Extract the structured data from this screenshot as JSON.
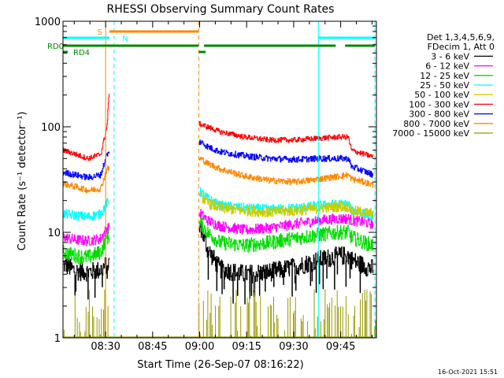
{
  "chart_data": {
    "type": "line",
    "title": "RHESSI Observing Summary Count Rates",
    "xlabel": "Start Time (26-Sep-07 08:16:22)",
    "ylabel": "Count Rate (s⁻¹ detector⁻¹)",
    "y_scale": "log",
    "ylim": [
      1,
      1000
    ],
    "y_ticks": [
      1,
      10,
      100,
      1000
    ],
    "y_tick_labels": [
      "1",
      "10",
      "100",
      "1000"
    ],
    "x_unit": "minutes since 08:16:22",
    "xlim": [
      0,
      100
    ],
    "x_ticks": [
      13.6,
      28.6,
      43.6,
      58.6,
      73.6,
      88.6
    ],
    "x_tick_labels": [
      "08:30",
      "08:45",
      "09:00",
      "09:15",
      "09:30",
      "09:45"
    ],
    "gaps": [
      [
        14.8,
        43.3
      ]
    ],
    "legend_header": [
      "Det 1,3,4,5,6,9,",
      "FDecim 1, Att 0"
    ],
    "timestamp": "16-Oct-2021 15:51",
    "series": [
      {
        "name": "3 - 6 keV",
        "color": "#000000",
        "values": [
          [
            0,
            5
          ],
          [
            4,
            4.3
          ],
          [
            8,
            4.2
          ],
          [
            12,
            4.4
          ],
          [
            14,
            5
          ],
          [
            44,
            11
          ],
          [
            46,
            7
          ],
          [
            50,
            4.5
          ],
          [
            58,
            4
          ],
          [
            66,
            4.2
          ],
          [
            74,
            4.7
          ],
          [
            82,
            5.5
          ],
          [
            88,
            6
          ],
          [
            91,
            6
          ],
          [
            92,
            5.5
          ],
          [
            96,
            4.8
          ],
          [
            99,
            4.5
          ]
        ]
      },
      {
        "name": "6 - 12 keV",
        "color": "#ff00ff",
        "values": [
          [
            0,
            9
          ],
          [
            4,
            8.5
          ],
          [
            8,
            8.3
          ],
          [
            12,
            8.7
          ],
          [
            14,
            11
          ],
          [
            44,
            15
          ],
          [
            46,
            13
          ],
          [
            50,
            11.5
          ],
          [
            58,
            10.5
          ],
          [
            66,
            11
          ],
          [
            74,
            12
          ],
          [
            82,
            13
          ],
          [
            88,
            13.5
          ],
          [
            91,
            13.5
          ],
          [
            92,
            13
          ],
          [
            96,
            12.5
          ],
          [
            99,
            12
          ]
        ]
      },
      {
        "name": "12 - 25 keV",
        "color": "#00dd00",
        "values": [
          [
            0,
            6.5
          ],
          [
            4,
            6
          ],
          [
            8,
            5.8
          ],
          [
            12,
            6.5
          ],
          [
            14,
            9
          ],
          [
            44,
            12
          ],
          [
            46,
            10
          ],
          [
            50,
            8
          ],
          [
            58,
            7.5
          ],
          [
            66,
            8
          ],
          [
            74,
            8.8
          ],
          [
            82,
            9.5
          ],
          [
            88,
            10
          ],
          [
            91,
            10
          ],
          [
            92,
            9
          ],
          [
            96,
            8
          ],
          [
            99,
            7.5
          ]
        ]
      },
      {
        "name": "25 - 50 keV",
        "color": "#00ffff",
        "values": [
          [
            0,
            15
          ],
          [
            4,
            14.5
          ],
          [
            8,
            14
          ],
          [
            12,
            15
          ],
          [
            14,
            19
          ],
          [
            44,
            24
          ],
          [
            46,
            21
          ],
          [
            50,
            18
          ],
          [
            58,
            17
          ],
          [
            66,
            16.5
          ],
          [
            74,
            17
          ],
          [
            82,
            18
          ],
          [
            88,
            18.5
          ],
          [
            91,
            18.5
          ],
          [
            92,
            16
          ],
          [
            96,
            15
          ],
          [
            99,
            14.5
          ]
        ]
      },
      {
        "name": "50 - 100 keV",
        "color": "#cccc00",
        "values": [
          [
            44,
            22
          ],
          [
            46,
            19
          ],
          [
            50,
            17
          ],
          [
            58,
            16
          ],
          [
            66,
            15.5
          ],
          [
            74,
            16
          ],
          [
            82,
            17
          ],
          [
            88,
            17.5
          ],
          [
            91,
            17.5
          ],
          [
            92,
            16
          ],
          [
            96,
            15.5
          ],
          [
            99,
            15
          ]
        ]
      },
      {
        "name": "100 - 300 keV",
        "color": "#ff0000",
        "values": [
          [
            0,
            60
          ],
          [
            4,
            55
          ],
          [
            8,
            50
          ],
          [
            12,
            55
          ],
          [
            14,
            100
          ],
          [
            15,
            300
          ],
          [
            44,
            105
          ],
          [
            46,
            100
          ],
          [
            50,
            90
          ],
          [
            58,
            80
          ],
          [
            66,
            75
          ],
          [
            74,
            75
          ],
          [
            82,
            78
          ],
          [
            88,
            80
          ],
          [
            91,
            80
          ],
          [
            92,
            60
          ],
          [
            96,
            55
          ],
          [
            99,
            52
          ]
        ]
      },
      {
        "name": "300 - 800 keV",
        "color": "#0000ff",
        "values": [
          [
            0,
            37
          ],
          [
            4,
            35
          ],
          [
            8,
            33
          ],
          [
            12,
            35
          ],
          [
            14,
            55
          ],
          [
            44,
            72
          ],
          [
            46,
            65
          ],
          [
            50,
            58
          ],
          [
            58,
            53
          ],
          [
            66,
            50
          ],
          [
            74,
            49
          ],
          [
            82,
            50
          ],
          [
            88,
            50
          ],
          [
            91,
            50
          ],
          [
            92,
            42
          ],
          [
            96,
            38
          ],
          [
            99,
            35
          ]
        ]
      },
      {
        "name": "800 - 7000 keV",
        "color": "#ff8800",
        "values": [
          [
            0,
            29
          ],
          [
            4,
            27
          ],
          [
            8,
            25
          ],
          [
            12,
            26
          ],
          [
            14,
            40
          ],
          [
            44,
            50
          ],
          [
            46,
            45
          ],
          [
            50,
            40
          ],
          [
            58,
            34
          ],
          [
            66,
            31
          ],
          [
            74,
            30
          ],
          [
            82,
            32
          ],
          [
            88,
            34
          ],
          [
            91,
            35
          ],
          [
            92,
            32
          ],
          [
            96,
            30
          ],
          [
            99,
            28
          ]
        ]
      },
      {
        "name": "7000 - 15000 keV",
        "color": "#999900",
        "values": [
          [
            0,
            1
          ],
          [
            99,
            1
          ]
        ]
      }
    ],
    "annotations": {
      "flag_lines": [
        {
          "label": "S",
          "color": "#ff8800",
          "segments": [
            [
              14.8,
              43.3
            ]
          ]
        },
        {
          "label": "N",
          "color": "#00ffff",
          "segments": [
            [
              0,
              14.8
            ],
            [
              81.5,
              99.5
            ]
          ]
        },
        {
          "label": "RD0",
          "color": "#008800",
          "segments": [
            [
              0,
              43.3
            ],
            [
              45,
              87
            ],
            [
              90,
              99.5
            ]
          ]
        },
        {
          "label": "RD4",
          "color": "#008800",
          "segments": [
            [
              0,
              1.5
            ],
            [
              43.3,
              45.5
            ]
          ]
        }
      ],
      "vlines": [
        {
          "x": 0,
          "color": "#00ffff",
          "style": "solid"
        },
        {
          "x": 13.6,
          "color": "#ff8800",
          "style": "solid"
        },
        {
          "x": 16.3,
          "color": "#00ffff",
          "style": "dashed"
        },
        {
          "x": 43.3,
          "color": "#ff8800",
          "style": "dashed"
        },
        {
          "x": 81.5,
          "color": "#00ffff",
          "style": "solid"
        },
        {
          "x": 99.5,
          "color": "#00ffff",
          "style": "dashed"
        }
      ]
    }
  }
}
